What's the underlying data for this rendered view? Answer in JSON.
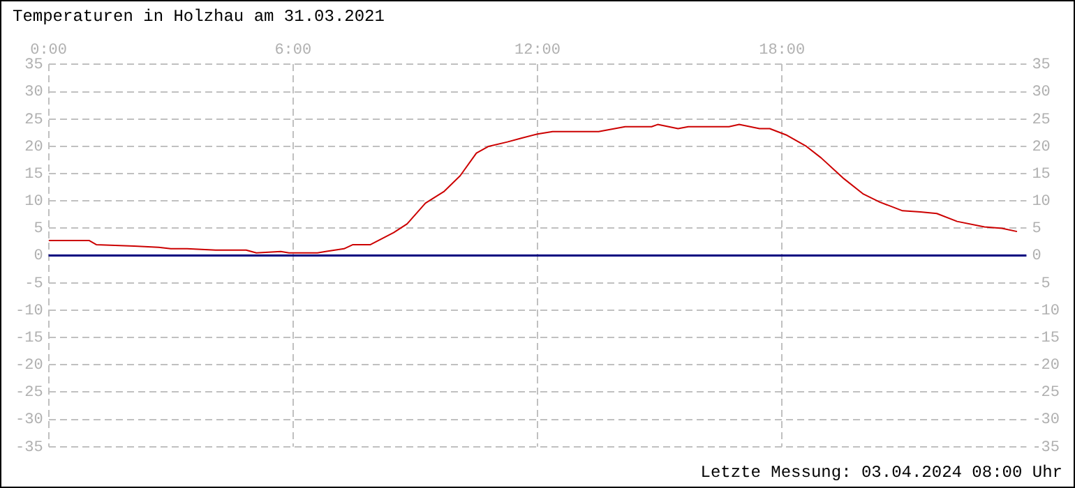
{
  "chart_data": {
    "type": "line",
    "title": "Temperaturen in Holzhau am 31.03.2021",
    "annotations": [
      "Letzte Messung: 03.04.2024 08:00 Uhr"
    ],
    "x": [
      0,
      1.0,
      1.17,
      2.1,
      2.7,
      3.0,
      3.4,
      4.1,
      4.85,
      5.1,
      5.7,
      5.9,
      6.6,
      6.8,
      7.25,
      7.47,
      7.9,
      8.47,
      8.8,
      9.25,
      9.7,
      10.1,
      10.5,
      10.8,
      11.26,
      11.6,
      12.0,
      12.37,
      13.5,
      14.15,
      14.8,
      14.95,
      15.45,
      15.7,
      16.7,
      16.95,
      17.45,
      17.7,
      18.1,
      18.6,
      18.96,
      19.5,
      20.0,
      20.4,
      20.96,
      21.4,
      21.8,
      22.3,
      22.97,
      23.4,
      23.77
    ],
    "series": [
      {
        "color": "#cc0000",
        "values": [
          2.75,
          2.75,
          2.0,
          1.75,
          1.5,
          1.25,
          1.25,
          1.0,
          1.0,
          0.5,
          0.75,
          0.5,
          0.5,
          0.75,
          1.25,
          2.0,
          2.0,
          4.2,
          5.8,
          9.6,
          11.7,
          14.6,
          18.75,
          20.0,
          20.8,
          21.5,
          22.25,
          22.7,
          22.7,
          23.6,
          23.6,
          24.0,
          23.25,
          23.6,
          23.6,
          24.0,
          23.25,
          23.25,
          22.1,
          20.0,
          17.9,
          14.2,
          11.25,
          9.8,
          8.2,
          8.0,
          7.7,
          6.25,
          5.25,
          5.0,
          4.4
        ]
      }
    ],
    "xlim": [
      0,
      24
    ],
    "xticks": [
      {
        "value": 0,
        "label": "0:00"
      },
      {
        "value": 6,
        "label": "6:00"
      },
      {
        "value": 12,
        "label": "12:00"
      },
      {
        "value": 18,
        "label": "18:00"
      }
    ],
    "ylim": [
      -35,
      35
    ],
    "yticks": [
      -35,
      -30,
      -25,
      -20,
      -15,
      -10,
      -5,
      0,
      5,
      10,
      15,
      20,
      25,
      30,
      35
    ],
    "y2lim": [
      -35,
      35
    ],
    "y2ticks": [
      -35,
      -30,
      -25,
      -20,
      -15,
      -10,
      -5,
      0,
      5,
      10,
      15,
      20,
      25,
      30,
      35
    ],
    "ref_lines": [
      {
        "axis": "y",
        "value": 0,
        "color": "#000080"
      }
    ],
    "grid": true,
    "legend": false,
    "marker": "none",
    "line_style": "solid"
  }
}
